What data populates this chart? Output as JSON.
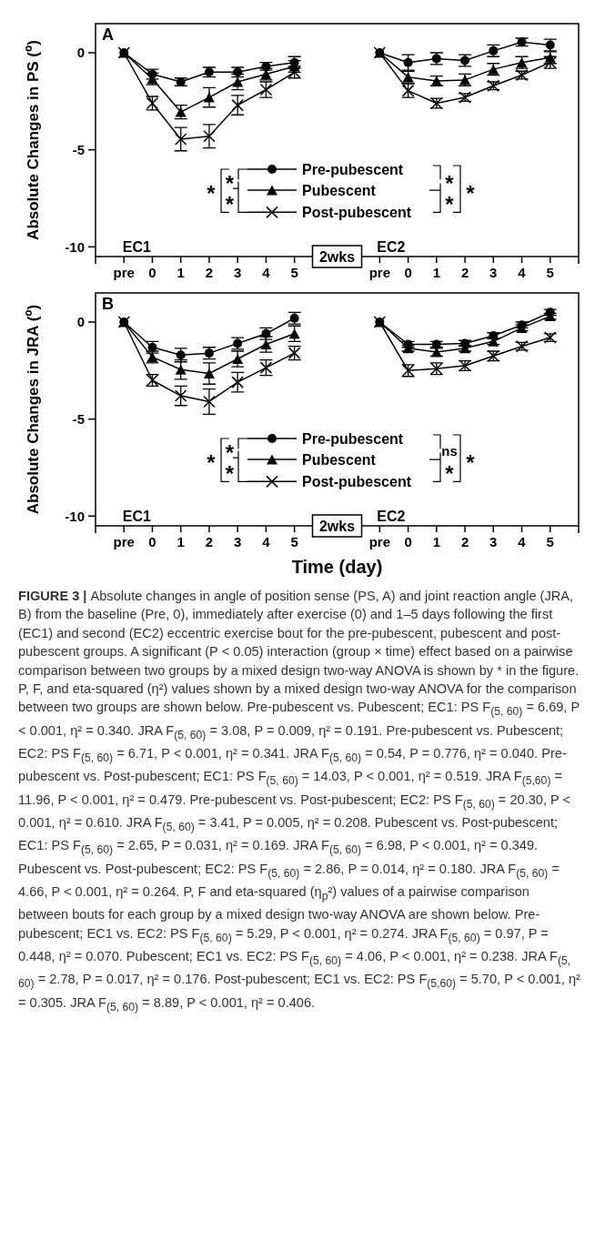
{
  "chart_data": [
    {
      "type": "line",
      "ylabel": "Absolute Changes in PS ($^{o}$)",
      "categories": [
        "pre",
        "0",
        "1",
        "2",
        "3",
        "4",
        "5",
        null,
        null,
        "pre",
        "0",
        "1",
        "2",
        "3",
        "4",
        "5"
      ],
      "ylim": [
        -10.5,
        1.5
      ],
      "yticks": [
        -10,
        -5,
        0
      ],
      "grid": false,
      "legend": "bottom",
      "line_style": "solid",
      "series": [
        {
          "name": "Pre-pubescent",
          "color": "#000000",
          "marker": "circle",
          "values": [
            0,
            -1.1,
            -1.5,
            -1.0,
            -1.0,
            -0.7,
            -0.5,
            null,
            null,
            0,
            -0.5,
            -0.3,
            -0.4,
            0.1,
            0.55,
            0.4
          ],
          "errors": [
            null,
            0.25,
            0.2,
            0.25,
            0.25,
            0.2,
            0.3,
            null,
            null,
            null,
            0.4,
            0.3,
            0.3,
            0.3,
            0.2,
            0.3
          ]
        },
        {
          "name": "Pubescent",
          "color": "#000000",
          "marker": "triangle",
          "values": [
            0,
            -1.35,
            -3.05,
            -2.3,
            -1.5,
            -1.1,
            -0.7,
            null,
            null,
            0,
            -1.25,
            -1.45,
            -1.4,
            -0.85,
            -0.5,
            -0.25
          ],
          "errors": [
            null,
            0.3,
            0.35,
            0.5,
            0.4,
            0.3,
            0.3,
            null,
            null,
            null,
            0.3,
            0.25,
            0.3,
            0.3,
            0.3,
            0.3
          ]
        },
        {
          "name": "Post-pubescent",
          "color": "#000000",
          "marker": "cross",
          "values": [
            0,
            -2.6,
            -4.45,
            -4.3,
            -2.7,
            -1.9,
            -1.0,
            null,
            null,
            0,
            -1.95,
            -2.6,
            -2.3,
            -1.7,
            -1.15,
            -0.5
          ],
          "errors": [
            null,
            0.35,
            0.6,
            0.6,
            0.5,
            0.4,
            0.3,
            null,
            null,
            null,
            0.35,
            0.25,
            0.2,
            0.2,
            0.2,
            0.3
          ]
        }
      ],
      "annotations": [
        "A",
        "EC1",
        "EC2",
        "2wks",
        "*",
        "*",
        "*",
        "*",
        "*",
        "*"
      ]
    },
    {
      "type": "line",
      "ylabel": "Absolute Changes in JRA ($^{o}$)",
      "xlabel": "Time (day)",
      "categories": [
        "pre",
        "0",
        "1",
        "2",
        "3",
        "4",
        "5",
        null,
        null,
        "pre",
        "0",
        "1",
        "2",
        "3",
        "4",
        "5"
      ],
      "ylim": [
        -10.5,
        1.5
      ],
      "yticks": [
        -10,
        -5,
        0
      ],
      "grid": false,
      "legend": "bottom",
      "line_style": "solid",
      "series": [
        {
          "name": "Pre-pubescent",
          "color": "#000000",
          "marker": "circle",
          "values": [
            0,
            -1.3,
            -1.7,
            -1.6,
            -1.1,
            -0.6,
            0.2,
            null,
            null,
            0,
            -1.15,
            -1.15,
            -1.1,
            -0.7,
            -0.15,
            0.5
          ],
          "errors": [
            null,
            0.3,
            0.35,
            0.3,
            0.3,
            0.3,
            0.3,
            null,
            null,
            null,
            0.15,
            0.15,
            0.15,
            0.15,
            0.15,
            0.15
          ]
        },
        {
          "name": "Pubescent",
          "color": "#000000",
          "marker": "triangle",
          "values": [
            0,
            -1.8,
            -2.45,
            -2.65,
            -1.9,
            -1.15,
            -0.6,
            null,
            null,
            0,
            -1.35,
            -1.55,
            -1.35,
            -1.0,
            -0.3,
            0.3
          ],
          "errors": [
            null,
            0.3,
            0.5,
            0.55,
            0.4,
            0.4,
            0.4,
            null,
            null,
            null,
            0.15,
            0.2,
            0.15,
            0.15,
            0.15,
            0.15
          ]
        },
        {
          "name": "Post-pubescent",
          "color": "#000000",
          "marker": "cross",
          "values": [
            0,
            -3.0,
            -3.8,
            -4.1,
            -3.1,
            -2.35,
            -1.6,
            null,
            null,
            0,
            -2.5,
            -2.4,
            -2.25,
            -1.75,
            -1.25,
            -0.8
          ],
          "errors": [
            null,
            0.3,
            0.5,
            0.65,
            0.5,
            0.4,
            0.35,
            null,
            null,
            null,
            0.3,
            0.3,
            0.25,
            0.25,
            0.2,
            0.2
          ]
        }
      ],
      "annotations": [
        "B",
        "EC1",
        "EC2",
        "2wks",
        "*",
        "*",
        "*",
        "ns",
        "*",
        "*"
      ]
    },
    {
      "type": "other",
      "title": "FIGURE 3 |",
      "annotations": [
        "Absolute changes in angle of position sense (PS, A) and joint reaction angle (JRA, B) from the baseline (Pre, 0), immediately after exercise (0) and 1–5 days following the first (EC1) and second (EC2) eccentric exercise bout for the pre-pubescent, pubescent and post-pubescent groups. A significant (P < 0.05) interaction (group × time) effect based on a pairwise comparison between two groups by a mixed design two-way ANOVA is shown by * in the figure. P, F, and eta-squared (η²) values shown by a mixed design two-way ANOVA for the comparison between two groups are shown below. Pre-pubescent vs. Pubescent; EC1: PS F$_{(5, 60)}$ = 6.69, P < 0.001, η² = 0.340. JRA F$_{(5, 60)}$ = 3.08, P = 0.009, η² = 0.191. Pre-pubescent vs. Pubescent; EC2: PS F$_{(5, 60)}$ = 6.71, P < 0.001, η² = 0.341. JRA F$_{(5, 60)}$ = 0.54, P = 0.776, η² = 0.040. Pre-pubescent vs. Post-pubescent; EC1: PS F$_{(5, 60)}$ = 14.03, P < 0.001, η² = 0.519. JRA F$_{(5,60)}$ = 11.96, P < 0.001, η² = 0.479. Pre-pubescent vs. Post-pubescent; EC2: PS F$_{(5, 60)}$ = 20.30, P < 0.001, η² = 0.610. JRA F$_{(5, 60)}$ = 3.41, P = 0.005, η² = 0.208. Pubescent vs. Post-pubescent; EC1: PS F$_{(5, 60)}$ = 2.65, P = 0.031, η² = 0.169. JRA F$_{(5, 60)}$ = 6.98, P < 0.001, η² = 0.349. Pubescent vs. Post-pubescent; EC2: PS F$_{(5, 60)}$ = 2.86, P = 0.014, η² = 0.180. JRA F$_{(5, 60)}$ = 4.66, P < 0.001, η² = 0.264. P, F and eta-squared (η$_{p}$²) values of a pairwise comparison between bouts for each group by a mixed design two-way ANOVA are shown below. Pre-pubescent; EC1 vs. EC2: PS F$_{(5, 60)}$ = 5.29, P < 0.001, η² = 0.274. JRA F$_{(5, 60)}$ = 0.97, P = 0.448, η² = 0.070. Pubescent; EC1 vs. EC2: PS F$_{(5, 60)}$ = 4.06, P < 0.001, η² = 0.238. JRA F$_{(5, 60)}$ = 2.78, P = 0.017, η² = 0.176. Post-pubescent; EC1 vs. EC2: PS F$_{(5,60)}$ = 5.70, P < 0.001, η² = 0.305. JRA F$_{(5, 60)}$ = 8.89, P < 0.001, η² = 0.406."
      ]
    }
  ]
}
